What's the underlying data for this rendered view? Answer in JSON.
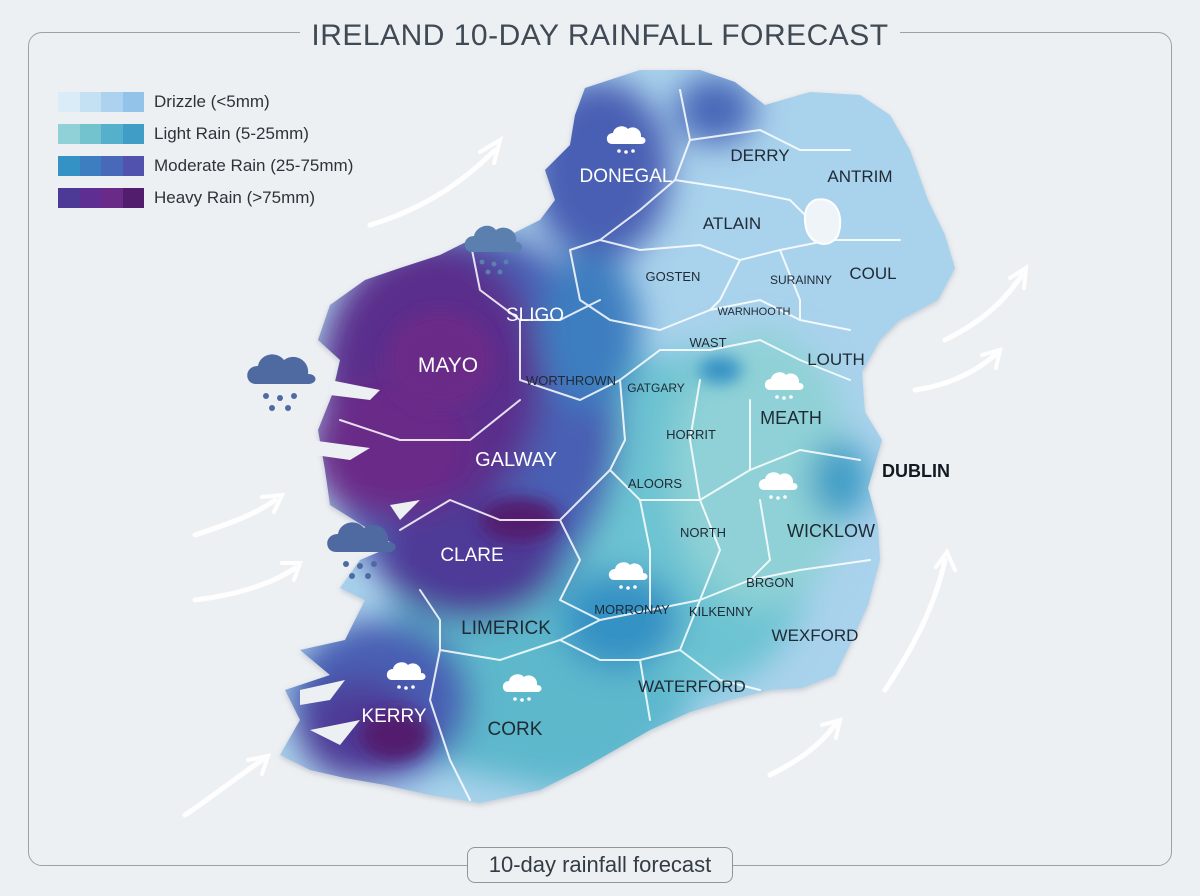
{
  "title": "IRELAND 10-DAY RAINFALL FORECAST",
  "caption": "10-day rainfall forecast",
  "legend": [
    {
      "label": "Drizzle (<5mm)",
      "colors": [
        "#d9ecf8",
        "#c4e1f4",
        "#acd2ef",
        "#93c3e8"
      ]
    },
    {
      "label": "Light Rain (5-25mm)",
      "colors": [
        "#8fd1d6",
        "#73c3cf",
        "#55b0cb",
        "#3f9dc6"
      ]
    },
    {
      "label": "Moderate Rain (25-75mm)",
      "colors": [
        "#3592c4",
        "#3d7ec0",
        "#4868b8",
        "#5052ad"
      ]
    },
    {
      "label": "Heavy Rain (>75mm)",
      "colors": [
        "#4d3a97",
        "#5e2e92",
        "#6a2a88",
        "#531d6e"
      ]
    }
  ],
  "regions": [
    {
      "name": "DONEGAL",
      "tone": "light"
    },
    {
      "name": "DERRY",
      "tone": "dark"
    },
    {
      "name": "ANTRIM",
      "tone": "dark"
    },
    {
      "name": "ATLAIN",
      "tone": "dark"
    },
    {
      "name": "GOSTEN",
      "tone": "dark"
    },
    {
      "name": "SURAINNY",
      "tone": "dark"
    },
    {
      "name": "COUL",
      "tone": "dark"
    },
    {
      "name": "SLIGO",
      "tone": "light"
    },
    {
      "name": "WARNHOOTH",
      "tone": "dark"
    },
    {
      "name": "MAYO",
      "tone": "light"
    },
    {
      "name": "WAST",
      "tone": "dark"
    },
    {
      "name": "LOUTH",
      "tone": "dark"
    },
    {
      "name": "WORTHROWN",
      "tone": "dark"
    },
    {
      "name": "GATGARY",
      "tone": "dark"
    },
    {
      "name": "MEATH",
      "tone": "dark"
    },
    {
      "name": "HORRIT",
      "tone": "dark"
    },
    {
      "name": "GALWAY",
      "tone": "light"
    },
    {
      "name": "DUBLIN",
      "tone": "dark"
    },
    {
      "name": "ALOORS",
      "tone": "dark"
    },
    {
      "name": "NORTH",
      "tone": "dark"
    },
    {
      "name": "WICKLOW",
      "tone": "dark"
    },
    {
      "name": "CLARE",
      "tone": "light"
    },
    {
      "name": "BRGON",
      "tone": "dark"
    },
    {
      "name": "MORRONAY",
      "tone": "dark"
    },
    {
      "name": "KILKENNY",
      "tone": "dark"
    },
    {
      "name": "LIMERICK",
      "tone": "dark"
    },
    {
      "name": "WEXFORD",
      "tone": "dark"
    },
    {
      "name": "WATERFORD",
      "tone": "dark"
    },
    {
      "name": "KERRY",
      "tone": "light"
    },
    {
      "name": "CORK",
      "tone": "dark"
    }
  ],
  "icons": {
    "rain_cloud": "rain-cloud-icon",
    "wind_arrow": "wind-arrow-icon"
  },
  "colors": {
    "background": "#edf0f3",
    "heavy": "#5a2d8c",
    "moderate": "#4a5fb3",
    "light": "#5cb7cd",
    "drizzle": "#a9d2ec",
    "border": "#ffffff"
  }
}
